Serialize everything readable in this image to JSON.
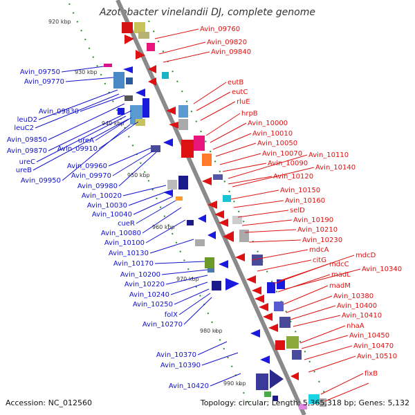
{
  "title": "Azotobacter vinelandii DJ, complete genome",
  "accession": "Accession: NC_012560",
  "summary": "Topology: circular; Length: 5,365,318 bp; Genes: 5,132",
  "colors": {
    "left_labels": "#1010cc",
    "right_labels": "#dd1111",
    "backbone": "#8a8a8a",
    "tick": "#2a8a2a"
  },
  "kbp_markers": [
    "920 kbp",
    "930 kbp",
    "940 kbp",
    "950 kbp",
    "960 kbp",
    "970 kbp",
    "980 kbp",
    "990 kbp"
  ],
  "left_labels": [
    "Avin_09750",
    "Avin_09770",
    "Avin_09830",
    "leuD2",
    "leuC2",
    "Avin_09850",
    "Avin_09870",
    "Avin_09910",
    "ureA",
    "ureC",
    "ureB",
    "Avin_09960",
    "Avin_09950",
    "Avin_09970",
    "Avin_09980",
    "Avin_10020",
    "Avin_10030",
    "Avin_10040",
    "cueR",
    "Avin_10080",
    "Avin_10100",
    "Avin_10130",
    "Avin_10170",
    "Avin_10200",
    "Avin_10220",
    "Avin_10240",
    "Avin_10250",
    "folX",
    "Avin_10270",
    "Avin_10370",
    "Avin_10390",
    "Avin_10420"
  ],
  "right_labels": [
    "Avin_09760",
    "Avin_09820",
    "Avin_09840",
    "eutB",
    "eutC",
    "rluE",
    "hrpB",
    "Avin_10000",
    "Avin_10010",
    "Avin_10050",
    "Avin_10070",
    "Avin_10110",
    "Avin_10090",
    "Avin_10140",
    "Avin_10120",
    "Avin_10150",
    "Avin_10160",
    "selD",
    "Avin_10190",
    "Avin_10210",
    "Avin_10230",
    "mdcA",
    "citG",
    "mdcD",
    "mdcC",
    "Avin_10340",
    "madL",
    "madM",
    "Avin_10380",
    "Avin_10400",
    "Avin_10410",
    "nhaA",
    "Avin_10450",
    "Avin_10470",
    "Avin_10510",
    "fixB"
  ]
}
